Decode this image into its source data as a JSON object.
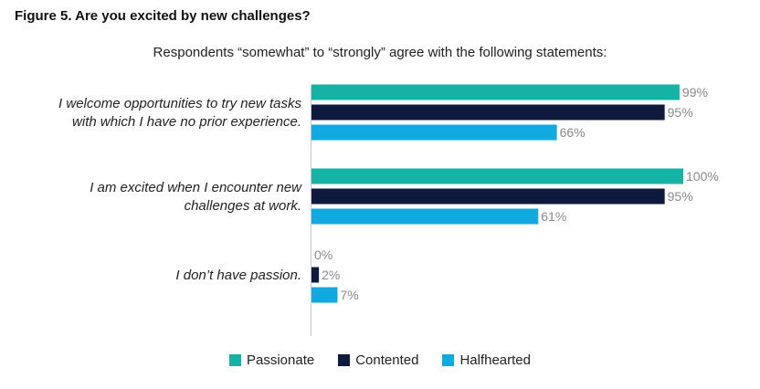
{
  "figure": {
    "title": "Figure 5. Are you excited by new challenges?",
    "subtitle": "Respondents “somewhat” to “strongly” agree with the following statements:"
  },
  "colors": {
    "Passionate": "#14b3a5",
    "Contented": "#0d1a3d",
    "Halfhearted": "#12a9e0",
    "axis": "#c8c8c8",
    "value_label": "#8a8a8a"
  },
  "chart_data": {
    "type": "bar",
    "orientation": "horizontal",
    "categories": [
      [
        "I welcome opportunities to try new tasks",
        "with which I have no prior experience."
      ],
      [
        "I am excited when I encounter new",
        "challenges at work."
      ],
      [
        "I don’t have passion."
      ]
    ],
    "series": [
      {
        "name": "Passionate",
        "values": [
          99,
          100,
          0
        ]
      },
      {
        "name": "Contented",
        "values": [
          95,
          95,
          2
        ]
      },
      {
        "name": "Halfhearted",
        "values": [
          66,
          61,
          7
        ]
      }
    ],
    "value_suffix": "%",
    "xlim": [
      0,
      100
    ],
    "grid": false,
    "legend": "bottom-center",
    "title": "",
    "xlabel": "",
    "ylabel": ""
  }
}
